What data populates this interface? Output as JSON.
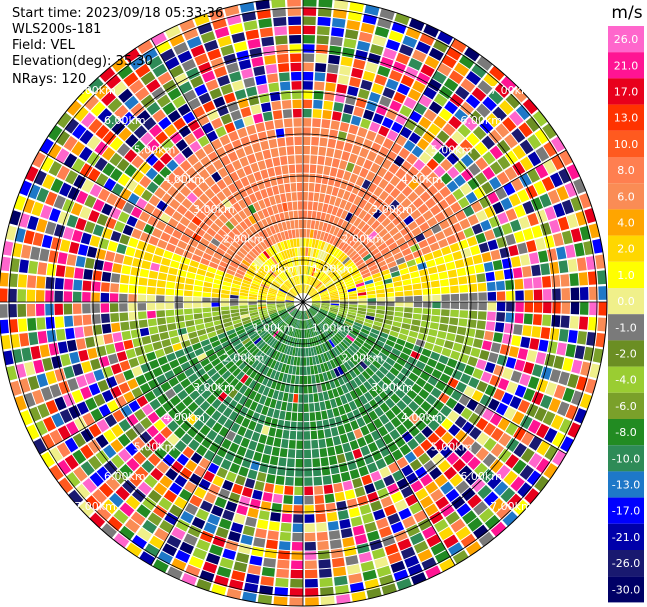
{
  "header": {
    "start_time": "Start time: 2023/09/18 05:33:36",
    "instrument": "WLS200s-181",
    "field": "Field: VEL",
    "elevation": "Elevation(deg): 35.30",
    "nrays": "NRays: 120"
  },
  "chart_data": {
    "type": "heatmap",
    "projection": "polar PPI",
    "field": "VEL",
    "unit": "m/s",
    "n_rays": 120,
    "range_rings_km": [
      1.0,
      2.0,
      3.0,
      4.0,
      5.0,
      6.0,
      7.0
    ],
    "ring_labels": [
      "1.00km",
      "2.00km",
      "3.00km",
      "4.00km",
      "5.00km",
      "6.00km",
      "7.00km"
    ],
    "spokes_deg": [
      0,
      30,
      60,
      90,
      120,
      150,
      180,
      210,
      240,
      270,
      300,
      330
    ],
    "colorbar": {
      "title": "m/s",
      "ticks": [
        "26.0",
        "21.0",
        "17.0",
        "13.0",
        "10.0",
        "8.0",
        "6.0",
        "4.0",
        "2.0",
        "1.0",
        "0.0",
        "-1.0",
        "-2.0",
        "-4.0",
        "-6.0",
        "-8.0",
        "-10.0",
        "-13.0",
        "-17.0",
        "-21.0",
        "-26.0",
        "-30.0"
      ],
      "colors": [
        "#ff66cc",
        "#ff1493",
        "#e8001c",
        "#ff3300",
        "#ff5a1f",
        "#ff7f50",
        "#fa8c55",
        "#ffa500",
        "#ffd700",
        "#ffff00",
        "#f0f08a",
        "#7a7a7a",
        "#6b8e23",
        "#9acd32",
        "#7aa02a",
        "#228b22",
        "#2e8b57",
        "#1e78c8",
        "#0000ff",
        "#0000aa",
        "#191970",
        "#000066"
      ]
    },
    "velocity_pattern": {
      "north_sector": 8.0,
      "near_center_north": 2.0,
      "center": 0.0,
      "near_center_south": -4.0,
      "south_sector": -8.0,
      "noisy_beyond_km": 4.3
    }
  }
}
